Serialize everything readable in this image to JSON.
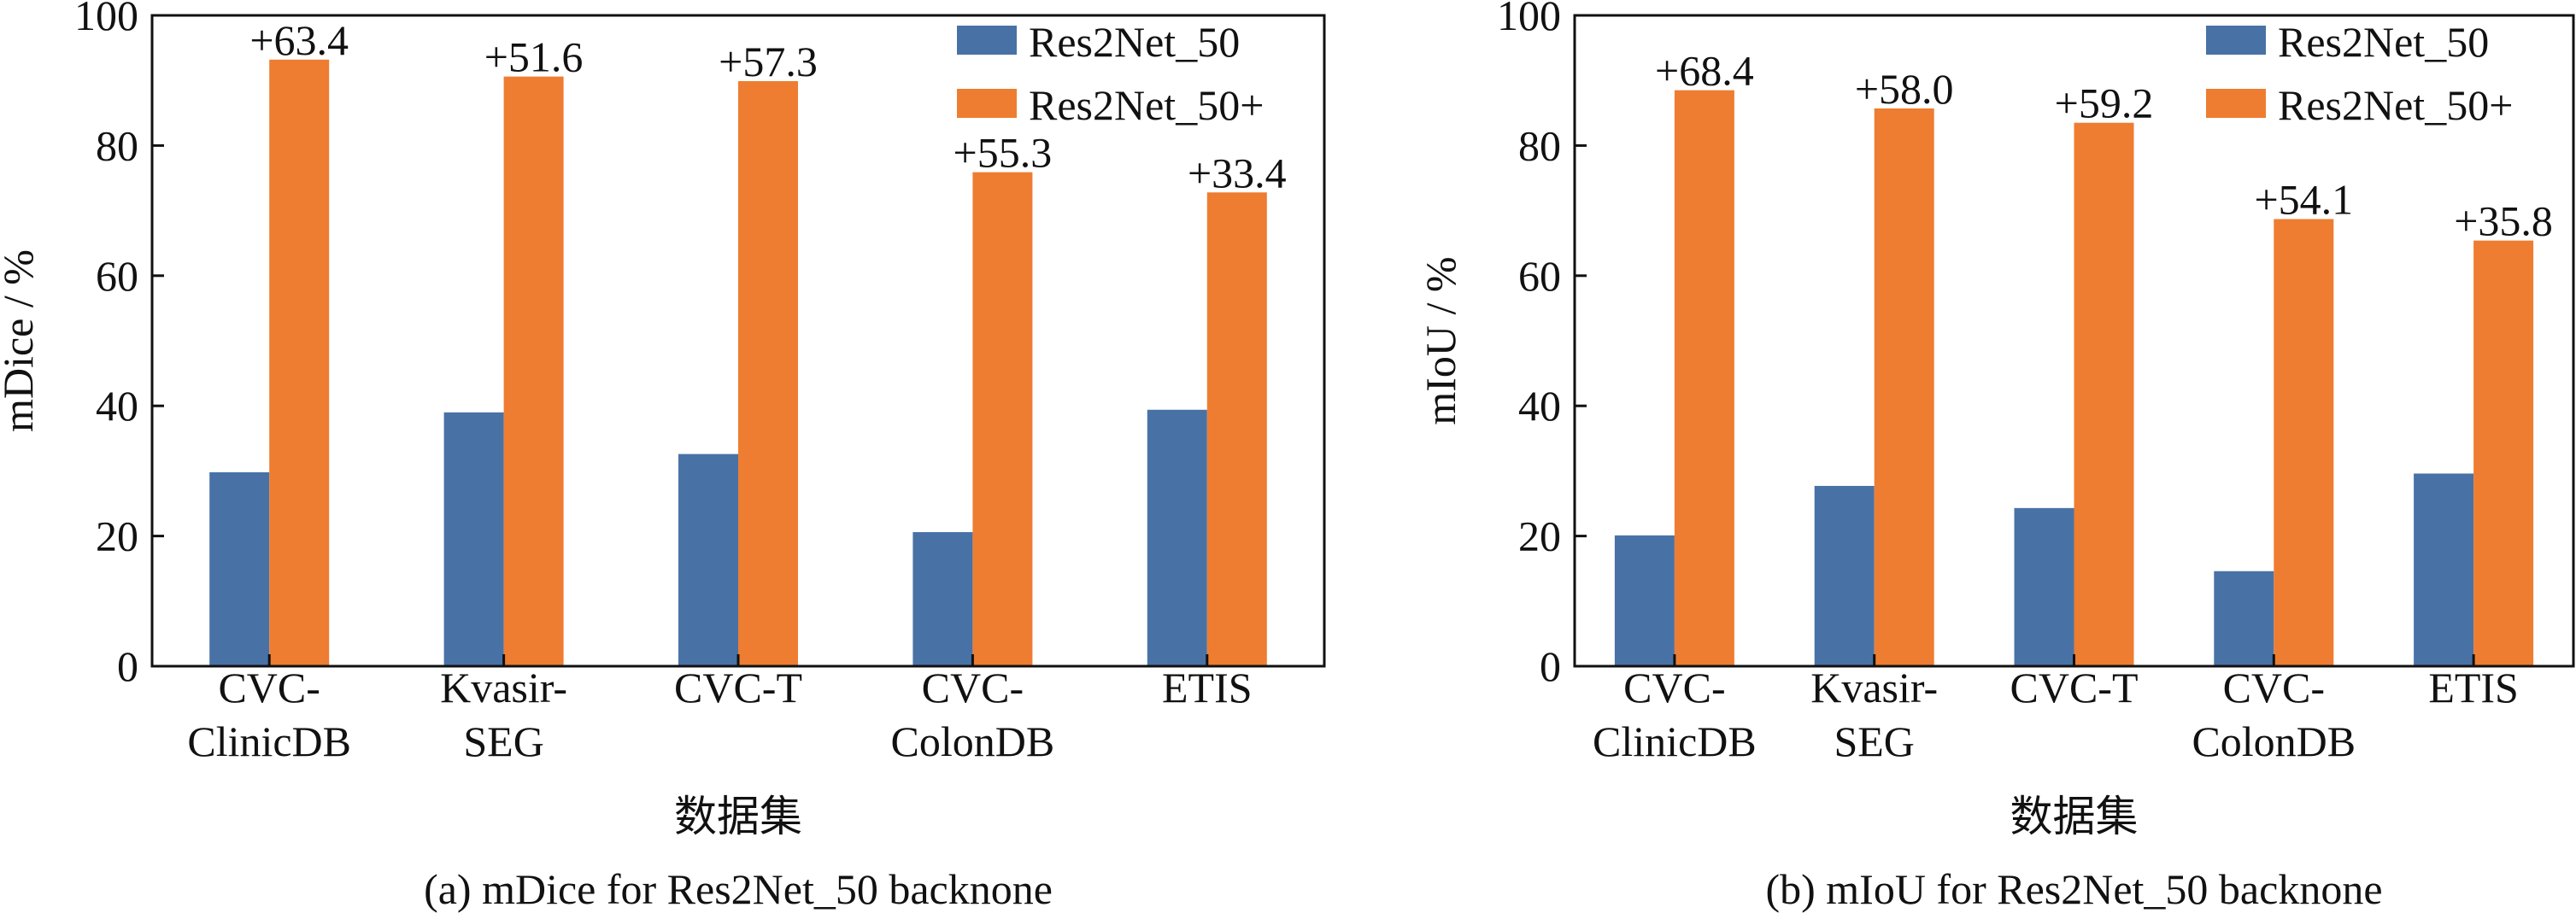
{
  "series_colors": {
    "Res2Net_50": "#4872a6",
    "Res2Net_50+": "#ee7d31"
  },
  "chart_data": [
    {
      "type": "bar",
      "caption": "(a) mDice for Res2Net_50 backnone",
      "xlabel": "数据集",
      "ylabel": "mDice / %",
      "ylim": [
        0,
        100
      ],
      "yticks": [
        0,
        20,
        40,
        60,
        80,
        100
      ],
      "categories": [
        [
          "CVC-",
          "ClinicDB"
        ],
        [
          "Kvasir-",
          "SEG"
        ],
        [
          "CVC-T"
        ],
        [
          "CVC-",
          "ColonDB"
        ],
        [
          "ETIS"
        ]
      ],
      "series": [
        {
          "name": "Res2Net_50",
          "values": [
            29.8,
            39.0,
            32.6,
            20.6,
            39.4
          ]
        },
        {
          "name": "Res2Net_50+",
          "values": [
            93.2,
            90.6,
            89.9,
            75.9,
            72.8
          ]
        }
      ],
      "annotations": [
        "+63.4",
        "+51.6",
        "+57.3",
        "+55.3",
        "+33.4"
      ],
      "legend": {
        "placement": "top-right",
        "entries": [
          "Res2Net_50",
          "Res2Net_50+"
        ]
      }
    },
    {
      "type": "bar",
      "caption": "(b) mIoU for Res2Net_50 backnone",
      "xlabel": "数据集",
      "ylabel": "mIoU / %",
      "ylim": [
        0,
        100
      ],
      "yticks": [
        0,
        20,
        40,
        60,
        80,
        100
      ],
      "categories": [
        [
          "CVC-",
          "ClinicDB"
        ],
        [
          "Kvasir-",
          "SEG"
        ],
        [
          "CVC-T"
        ],
        [
          "CVC-",
          "ColonDB"
        ],
        [
          "ETIS"
        ]
      ],
      "series": [
        {
          "name": "Res2Net_50",
          "values": [
            20.1,
            27.7,
            24.3,
            14.6,
            29.6
          ]
        },
        {
          "name": "Res2Net_50+",
          "values": [
            88.5,
            85.7,
            83.5,
            68.7,
            65.4
          ]
        }
      ],
      "annotations": [
        "+68.4",
        "+58.0",
        "+59.2",
        "+54.1",
        "+35.8"
      ],
      "legend": {
        "placement": "top-right",
        "entries": [
          "Res2Net_50",
          "Res2Net_50+"
        ]
      }
    }
  ]
}
